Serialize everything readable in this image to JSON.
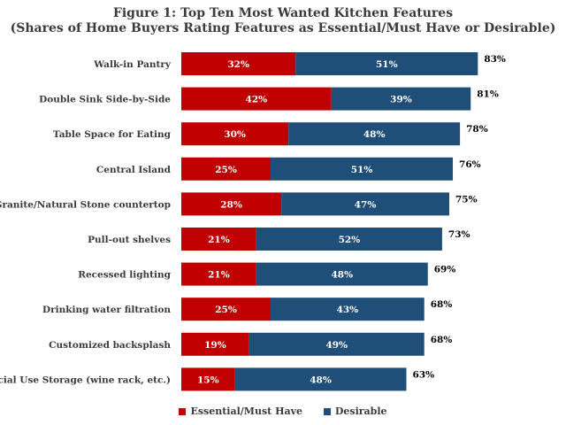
{
  "colors": {
    "essential": "#C00000",
    "desirable": "#1F4E79",
    "text": "#3a3a3a"
  },
  "chart_data": {
    "type": "bar",
    "orientation": "horizontal",
    "stacked": true,
    "title": "Figure 1: Top Ten Most Wanted Kitchen Features",
    "subtitle": "(Shares of Home Buyers Rating Features as Essential/Must Have or Desirable)",
    "categories": [
      "Walk-in Pantry",
      "Double Sink Side-by-Side",
      "Table Space for Eating",
      "Central Island",
      "Granite/Natural Stone countertop",
      "Pull-out shelves",
      "Recessed lighting",
      "Drinking water filtration",
      "Customized backsplash",
      "Special Use Storage (wine rack, etc.)"
    ],
    "series": [
      {
        "name": "Essential/Must Have",
        "values": [
          32,
          42,
          30,
          25,
          28,
          21,
          21,
          25,
          19,
          15
        ]
      },
      {
        "name": "Desirable",
        "values": [
          51,
          39,
          48,
          51,
          47,
          52,
          48,
          43,
          49,
          48
        ]
      }
    ],
    "totals": [
      83,
      81,
      78,
      76,
      75,
      73,
      69,
      68,
      68,
      63
    ],
    "unit": "%",
    "xlim": [
      0,
      100
    ],
    "grid": false,
    "legend_position": "bottom"
  }
}
